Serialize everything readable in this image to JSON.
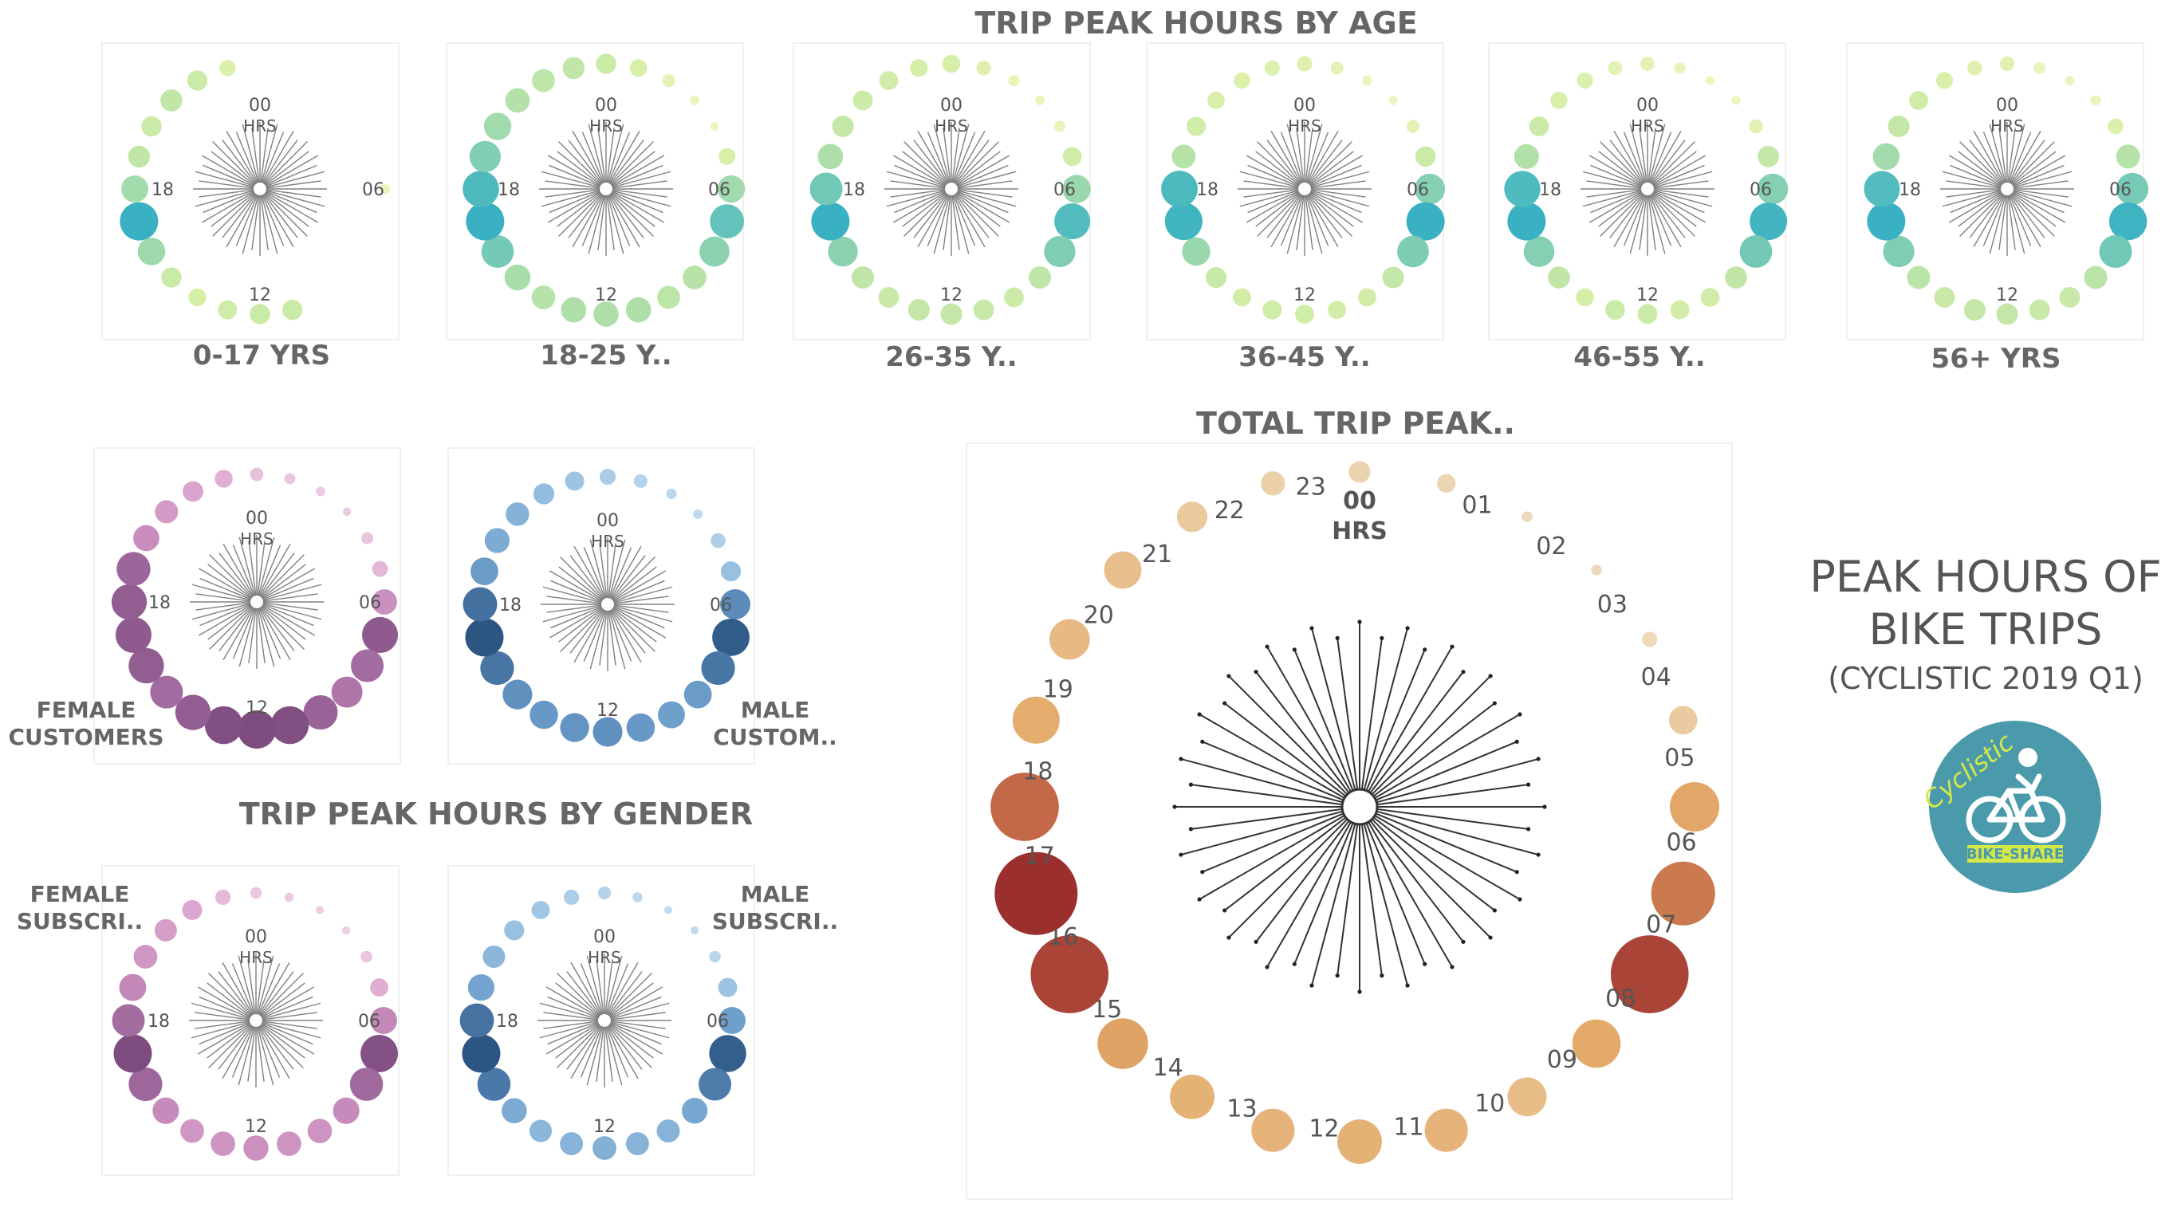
{
  "headings": {
    "age_section": "TRIP PEAK HOURS BY AGE",
    "gender_section": "TRIP PEAK HOURS BY GENDER",
    "total_section": "TOTAL TRIP PEAK.."
  },
  "brand": {
    "title_line1": "PEAK HOURS OF",
    "title_line2": "BIKE TRIPS",
    "subtitle": "(CYCLISTIC 2019 Q1)",
    "logo_text": "Cyclistic",
    "logo_subtext": "BIKE-SHARE",
    "logo_color": "#4a9aab",
    "logo_accent": "#d4e84a"
  },
  "small_chart_labels": {
    "hrs00": "00",
    "hrs": "HRS",
    "h06": "06",
    "h12": "12",
    "h18": "18"
  },
  "total_chart_labels": {
    "center_top": "00",
    "center_bottom": "HRS",
    "hours": [
      "",
      "01",
      "02",
      "03",
      "04",
      "05",
      "06",
      "07",
      "08",
      "09",
      "10",
      "11",
      "12",
      "13",
      "14",
      "15",
      "16",
      "17",
      "18",
      "19",
      "20",
      "21",
      "22",
      "23"
    ]
  },
  "palettes": {
    "age": [
      "#f2f8c8",
      "#d8efa8",
      "#b5e2a8",
      "#8fd3b0",
      "#62c3ba",
      "#3ab1c3"
    ],
    "female": [
      "#f0d4e8",
      "#deaad0",
      "#c488b8",
      "#a06a9e",
      "#7e4c7e"
    ],
    "male": [
      "#c8e0f2",
      "#9dc3e2",
      "#6fa0cc",
      "#4a78a8",
      "#2c5582"
    ],
    "total": [
      "#eeddc0",
      "#e4ab6a",
      "#c46b48",
      "#9a2f2e"
    ]
  },
  "chart_data": [
    {
      "type": "radial-bubble",
      "group": "age",
      "title": "0-17 YRS",
      "x": [
        0,
        1,
        2,
        3,
        4,
        5,
        6,
        7,
        8,
        9,
        10,
        11,
        12,
        13,
        14,
        15,
        16,
        17,
        18,
        19,
        20,
        21,
        22,
        23
      ],
      "values": [
        0,
        0,
        0,
        0,
        0,
        0,
        7,
        0,
        0,
        0,
        0,
        28,
        28,
        25,
        22,
        28,
        52,
        100,
        50,
        33,
        28,
        33,
        28,
        18
      ]
    },
    {
      "type": "radial-bubble",
      "group": "age",
      "title": "18-25 Y..",
      "x": [
        0,
        1,
        2,
        3,
        4,
        5,
        6,
        7,
        8,
        9,
        10,
        11,
        12,
        13,
        14,
        15,
        16,
        17,
        18,
        19,
        20,
        21,
        22,
        23
      ],
      "values": [
        22,
        16,
        9,
        5,
        4,
        15,
        40,
        62,
        48,
        30,
        28,
        34,
        34,
        34,
        30,
        36,
        56,
        78,
        70,
        52,
        40,
        32,
        28,
        26
      ]
    },
    {
      "type": "radial-bubble",
      "group": "age",
      "title": "26-35 Y..",
      "x": [
        0,
        1,
        2,
        3,
        4,
        5,
        6,
        7,
        8,
        9,
        10,
        11,
        12,
        13,
        14,
        15,
        16,
        17,
        18,
        19,
        20,
        21,
        22,
        23
      ],
      "values": [
        18,
        12,
        7,
        5,
        7,
        20,
        45,
        72,
        55,
        28,
        22,
        24,
        26,
        26,
        24,
        28,
        50,
        82,
        60,
        36,
        26,
        22,
        20,
        18
      ]
    },
    {
      "type": "radial-bubble",
      "group": "age",
      "title": "36-45 Y..",
      "x": [
        0,
        1,
        2,
        3,
        4,
        5,
        6,
        7,
        8,
        9,
        10,
        11,
        12,
        13,
        14,
        15,
        16,
        17,
        18,
        19,
        20,
        21,
        22,
        23
      ],
      "values": [
        14,
        10,
        6,
        5,
        10,
        25,
        56,
        88,
        60,
        28,
        20,
        20,
        22,
        22,
        20,
        26,
        48,
        85,
        80,
        34,
        22,
        18,
        16,
        14
      ]
    },
    {
      "type": "radial-bubble",
      "group": "age",
      "title": "46-55 Y..",
      "x": [
        0,
        1,
        2,
        3,
        4,
        5,
        6,
        7,
        8,
        9,
        10,
        11,
        12,
        13,
        14,
        15,
        16,
        17,
        18,
        19,
        20,
        21,
        22,
        23
      ],
      "values": [
        12,
        8,
        5,
        5,
        12,
        28,
        58,
        86,
        65,
        30,
        22,
        22,
        24,
        24,
        20,
        30,
        58,
        90,
        80,
        38,
        24,
        18,
        16,
        12
      ]
    },
    {
      "type": "radial-bubble",
      "group": "age",
      "title": "56+ YRS",
      "x": [
        0,
        1,
        2,
        3,
        4,
        5,
        6,
        7,
        8,
        9,
        10,
        11,
        12,
        13,
        14,
        15,
        16,
        17,
        18,
        19,
        20,
        21,
        22,
        23
      ],
      "values": [
        12,
        8,
        5,
        6,
        14,
        32,
        58,
        80,
        60,
        30,
        24,
        24,
        26,
        26,
        24,
        30,
        55,
        82,
        72,
        40,
        26,
        20,
        16,
        12
      ]
    },
    {
      "type": "radial-bubble",
      "group": "female",
      "title": "FEMALE CUSTOMERS",
      "x": [
        0,
        1,
        2,
        3,
        4,
        5,
        6,
        7,
        8,
        9,
        10,
        11,
        12,
        13,
        14,
        15,
        16,
        17,
        18,
        19,
        20,
        21,
        22,
        23
      ],
      "values": [
        10,
        7,
        5,
        4,
        8,
        14,
        36,
        72,
        60,
        54,
        66,
        80,
        82,
        80,
        70,
        60,
        70,
        72,
        70,
        64,
        38,
        30,
        24,
        18
      ]
    },
    {
      "type": "radial-bubble",
      "group": "male",
      "title": "MALE CUSTOM..",
      "x": [
        0,
        1,
        2,
        3,
        4,
        5,
        6,
        7,
        8,
        9,
        10,
        11,
        12,
        13,
        14,
        15,
        16,
        17,
        18,
        19,
        20,
        21,
        22,
        23
      ],
      "values": [
        14,
        10,
        6,
        5,
        12,
        22,
        50,
        76,
        62,
        42,
        40,
        44,
        48,
        46,
        44,
        48,
        62,
        80,
        64,
        42,
        34,
        30,
        24,
        20
      ]
    },
    {
      "type": "radial-bubble",
      "group": "female",
      "title": "FEMALE SUBSCRI..",
      "x": [
        0,
        1,
        2,
        3,
        4,
        5,
        6,
        7,
        8,
        9,
        10,
        11,
        12,
        13,
        14,
        15,
        16,
        17,
        18,
        19,
        20,
        21,
        22,
        23
      ],
      "values": [
        8,
        5,
        4,
        4,
        8,
        20,
        44,
        84,
        66,
        42,
        36,
        36,
        38,
        36,
        34,
        42,
        68,
        88,
        64,
        44,
        34,
        30,
        24,
        14
      ]
    },
    {
      "type": "radial-bubble",
      "group": "male",
      "title": "MALE SUBSCRI..",
      "x": [
        0,
        1,
        2,
        3,
        4,
        5,
        6,
        7,
        8,
        9,
        10,
        11,
        12,
        13,
        14,
        15,
        16,
        17,
        18,
        19,
        20,
        21,
        22,
        23
      ],
      "values": [
        10,
        6,
        4,
        4,
        8,
        22,
        44,
        82,
        64,
        40,
        32,
        32,
        34,
        32,
        30,
        38,
        66,
        88,
        70,
        42,
        30,
        24,
        20,
        14
      ]
    },
    {
      "type": "radial-bubble",
      "group": "total",
      "title": "TOTAL TRIP PEAK..",
      "x": [
        0,
        1,
        2,
        3,
        4,
        5,
        6,
        7,
        8,
        9,
        10,
        11,
        12,
        13,
        14,
        15,
        16,
        17,
        18,
        19,
        20,
        21,
        22,
        23
      ],
      "values": [
        4,
        3,
        1,
        1,
        2,
        7,
        21,
        35,
        52,
        20,
        13,
        16,
        17,
        16,
        17,
        22,
        52,
        59,
        40,
        19,
        14,
        12,
        8,
        5
      ]
    }
  ]
}
